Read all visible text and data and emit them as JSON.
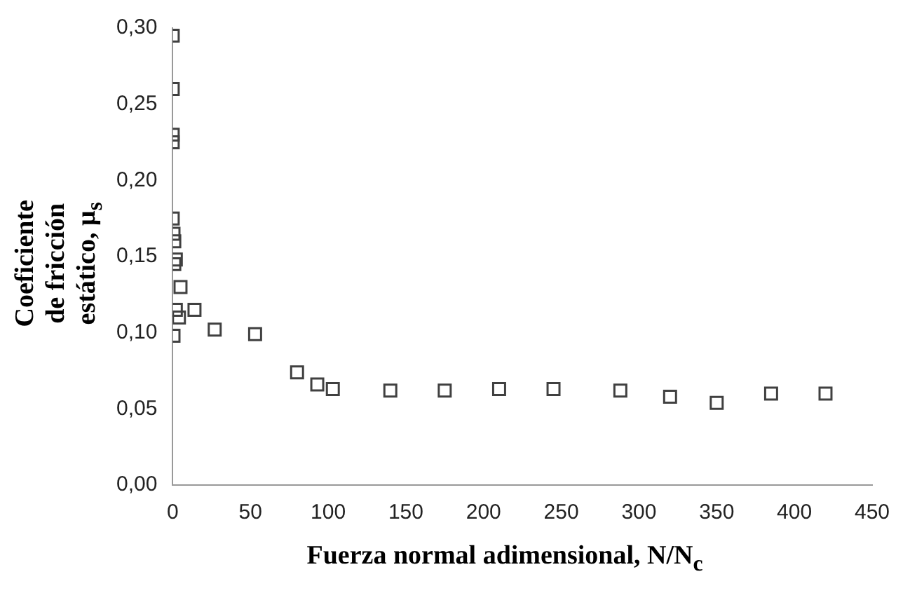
{
  "chart_data": {
    "type": "scatter",
    "xlabel": "Fuerza normal adimensional, N/N$_{c}$",
    "ylabel": "Coeficiente de fricción estático, μ$_{s}$",
    "x": [
      0,
      0,
      0,
      0,
      0,
      0.5,
      1,
      1,
      2,
      5,
      2,
      4,
      14,
      0.5,
      27,
      53,
      80,
      93,
      103,
      140,
      175,
      210,
      245,
      288,
      320,
      350,
      385,
      420
    ],
    "series": [
      {
        "color": "#404040",
        "values": [
          0.295,
          0.26,
          0.23,
          0.225,
          0.175,
          0.165,
          0.16,
          0.145,
          0.148,
          0.13,
          0.115,
          0.11,
          0.115,
          0.098,
          0.102,
          0.099,
          0.074,
          0.066,
          0.063,
          0.062,
          0.062,
          0.063,
          0.063,
          0.062,
          0.058,
          0.054,
          0.06,
          0.06
        ]
      }
    ],
    "marker": "square",
    "grid": false,
    "legend": false,
    "xlim": [
      0,
      450
    ],
    "xticks": [
      0,
      50,
      100,
      150,
      200,
      250,
      300,
      350,
      400,
      450
    ],
    "ylim": [
      0,
      0.3
    ],
    "yticks": [
      {
        "value": 0,
        "label": "0,00"
      },
      {
        "value": 0.05,
        "label": "0,05"
      },
      {
        "value": 0.1,
        "label": "0,10"
      },
      {
        "value": 0.15,
        "label": "0,15"
      },
      {
        "value": 0.2,
        "label": "0,20"
      },
      {
        "value": 0.25,
        "label": "0,25"
      },
      {
        "value": 0.3,
        "label": "0,30"
      }
    ]
  }
}
